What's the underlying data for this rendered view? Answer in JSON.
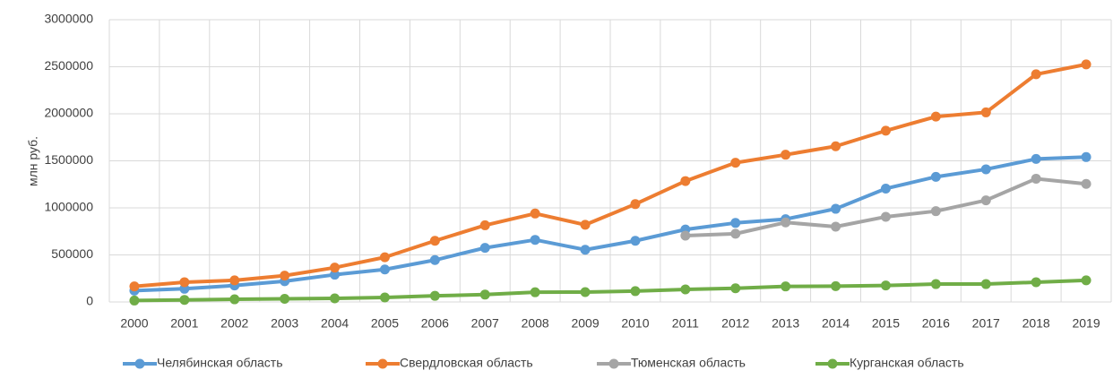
{
  "chart_data": {
    "type": "line",
    "y_label": "млн руб.",
    "categories": [
      "2000",
      "2001",
      "2002",
      "2003",
      "2004",
      "2005",
      "2006",
      "2007",
      "2008",
      "2009",
      "2010",
      "2011",
      "2012",
      "2013",
      "2014",
      "2015",
      "2016",
      "2017",
      "2018",
      "2019"
    ],
    "series": [
      {
        "name": "Челябинская область",
        "color": "#5b9bd5",
        "values": [
          120000,
          140000,
          175000,
          220000,
          290000,
          345000,
          445000,
          575000,
          660000,
          555000,
          650000,
          770000,
          840000,
          880000,
          990000,
          1205000,
          1330000,
          1410000,
          1520000,
          1540000
        ]
      },
      {
        "name": "Свердловская область",
        "color": "#ed7d31",
        "values": [
          165000,
          210000,
          230000,
          280000,
          365000,
          475000,
          650000,
          815000,
          940000,
          820000,
          1040000,
          1285000,
          1480000,
          1565000,
          1655000,
          1820000,
          1970000,
          2015000,
          2420000,
          2525000
        ]
      },
      {
        "name": "Тюменская область",
        "color": "#a5a5a5",
        "values": [
          null,
          null,
          null,
          null,
          null,
          null,
          null,
          null,
          null,
          null,
          null,
          705000,
          725000,
          845000,
          800000,
          905000,
          965000,
          1080000,
          1310000,
          1255000
        ]
      },
      {
        "name": "Курганская область",
        "color": "#70ad47",
        "values": [
          15000,
          22000,
          28000,
          33000,
          38000,
          48000,
          65000,
          78000,
          103000,
          105000,
          115000,
          133000,
          145000,
          165000,
          168000,
          175000,
          190000,
          190000,
          210000,
          230000
        ]
      }
    ],
    "ylim": [
      0,
      3000000
    ],
    "yticks": [
      0,
      500000,
      1000000,
      1500000,
      2000000,
      2500000,
      3000000
    ],
    "grid": true,
    "legend": "bottom"
  }
}
